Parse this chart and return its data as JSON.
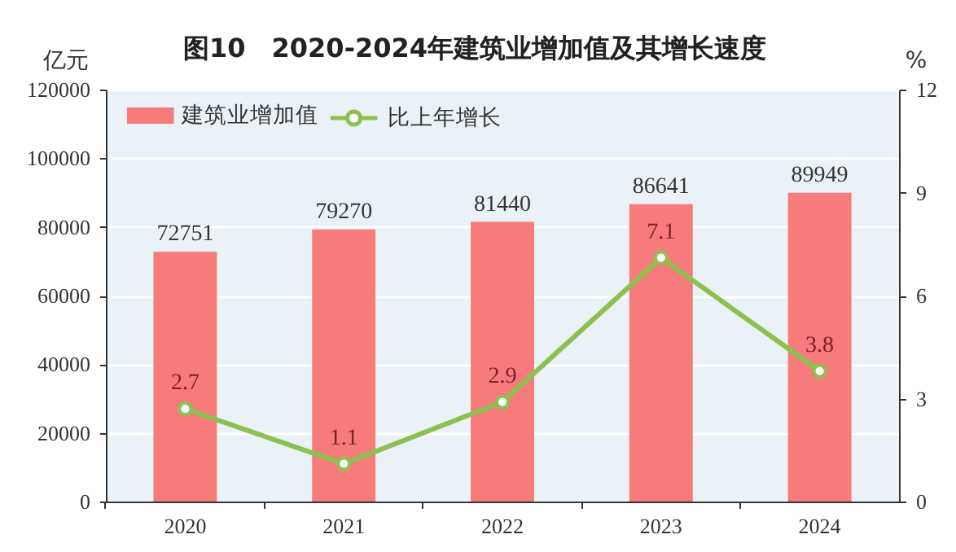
{
  "chart_data": {
    "type": "bar",
    "title": "图10　2020-2024年建筑业增加值及其增长速度",
    "ylabel": "亿元",
    "y2label": "%",
    "categories": [
      "2020",
      "2021",
      "2022",
      "2023",
      "2024"
    ],
    "series": [
      {
        "name": "建筑业增加值",
        "color": "#f77b7b",
        "values": [
          72751,
          79270,
          81440,
          86641,
          89949
        ]
      },
      {
        "name": "比上年增长",
        "type": "line",
        "axis": "y2",
        "color": "#8cc152",
        "values": [
          2.7,
          1.1,
          2.9,
          7.1,
          3.8
        ]
      }
    ],
    "ylim": [
      0,
      120000
    ],
    "yticks": [
      0,
      20000,
      40000,
      60000,
      80000,
      100000,
      120000
    ],
    "y2lim": [
      0,
      12
    ],
    "y2ticks": [
      0,
      3,
      6,
      9,
      12
    ],
    "grid": "y",
    "legend": "top left",
    "marker": "circle",
    "data_labels": true
  }
}
